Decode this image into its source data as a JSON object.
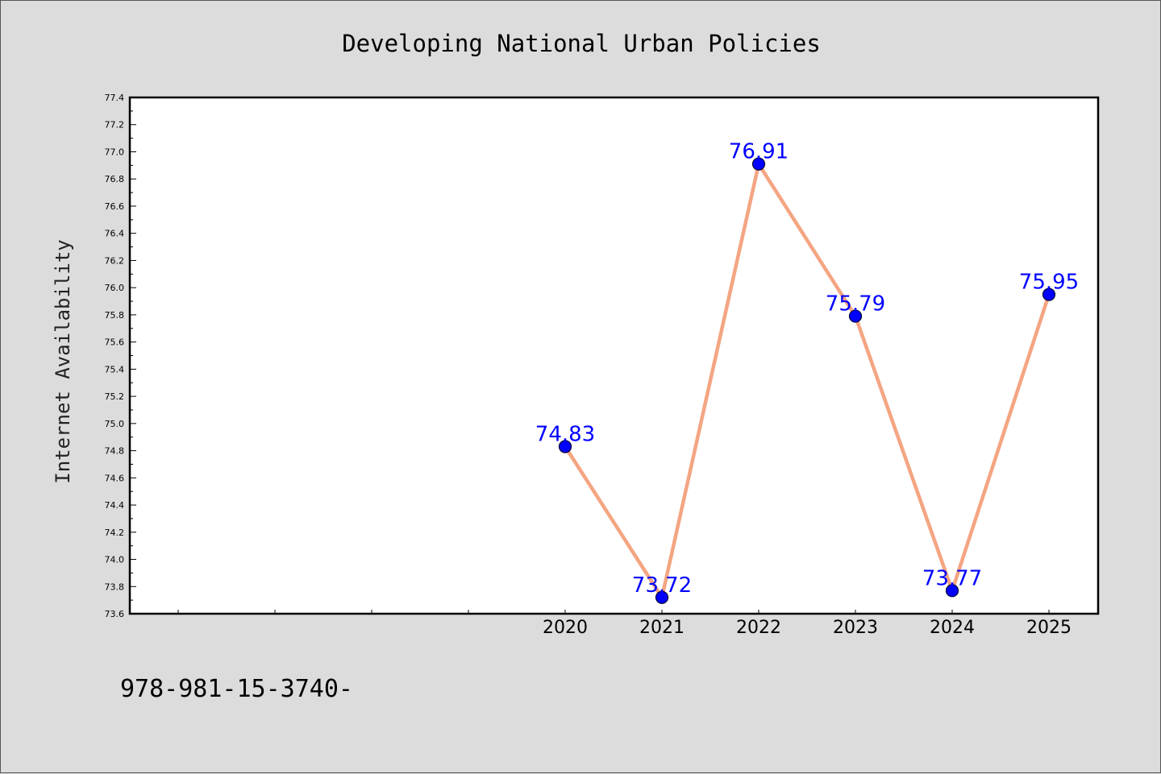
{
  "chart_data": {
    "type": "line",
    "title": "Developing National Urban Policies",
    "ylabel": "Internet Availability",
    "xlabel": "",
    "categories": [
      "2020",
      "2021",
      "2022",
      "2023",
      "2024",
      "2025"
    ],
    "series": [
      {
        "values": [
          74.83,
          73.72,
          76.91,
          75.79,
          73.77,
          75.95
        ]
      }
    ],
    "data_labels": [
      "74.83",
      "73.72",
      "76.91",
      "75.79",
      "73.77",
      "75.95"
    ],
    "ylim": [
      73.6,
      77.4
    ],
    "yticks": [
      "73.6",
      "73.8",
      "74.0",
      "74.2",
      "74.4",
      "74.6",
      "74.8",
      "75.0",
      "75.2",
      "75.4",
      "75.6",
      "75.8",
      "76.0",
      "76.2",
      "76.4",
      "76.6",
      "76.8",
      "77.0",
      "77.2",
      "77.4"
    ],
    "grid": false,
    "legend": "none",
    "colors": {
      "line": "#f4a582",
      "marker": "#0000ff",
      "labels": "#0000ff",
      "background": "#dcdcdc",
      "plot_background": "#ffffff"
    },
    "footnote": "978-981-15-3740-"
  }
}
